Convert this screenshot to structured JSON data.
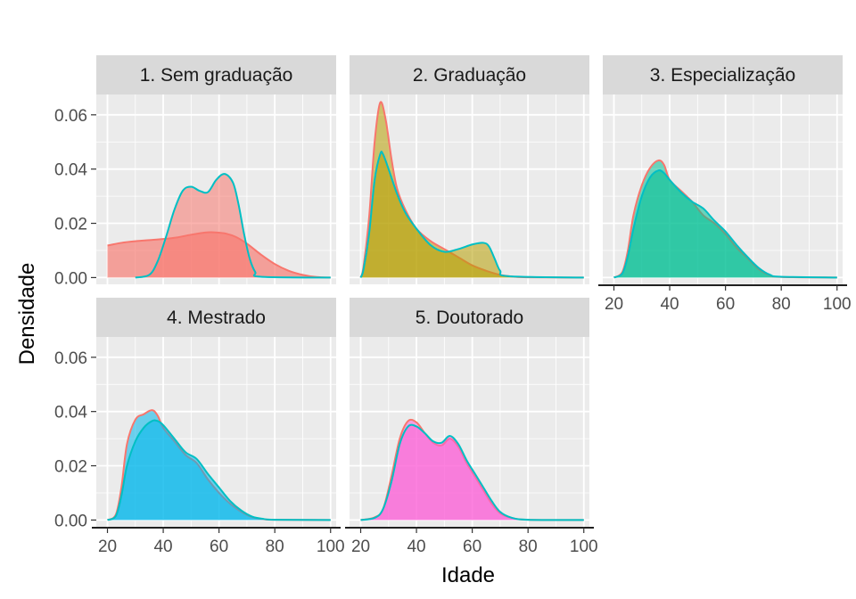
{
  "chart_data": {
    "type": "area",
    "xlabel": "Idade",
    "ylabel": "Densidade",
    "xlim": [
      16,
      102
    ],
    "ylim": [
      -0.0025,
      0.0675
    ],
    "xticks": [
      20,
      40,
      60,
      80,
      100
    ],
    "yticks": [
      0.0,
      0.02,
      0.04,
      0.06
    ],
    "ytick_labels": [
      "0.00",
      "0.02",
      "0.04",
      "0.06"
    ],
    "grid": true,
    "legend": "none",
    "panels": [
      {
        "title": "1. Sem graduação",
        "fill": "#F8766D",
        "series": [
          {
            "stroke": "#F8766D",
            "opacity": 0.65,
            "points": [
              [
                20,
                0.0118
              ],
              [
                25,
                0.0128
              ],
              [
                30,
                0.0134
              ],
              [
                35,
                0.0138
              ],
              [
                40,
                0.0142
              ],
              [
                45,
                0.0148
              ],
              [
                50,
                0.0158
              ],
              [
                55,
                0.0166
              ],
              [
                58,
                0.0167
              ],
              [
                62,
                0.0163
              ],
              [
                66,
                0.015
              ],
              [
                70,
                0.0125
              ],
              [
                75,
                0.0085
              ],
              [
                80,
                0.005
              ],
              [
                85,
                0.0025
              ],
              [
                90,
                0.001
              ],
              [
                95,
                0.0002
              ],
              [
                100,
                0.0
              ]
            ]
          },
          {
            "stroke": "#00BFC4",
            "opacity": 0.55,
            "points": [
              [
                30,
                0.0
              ],
              [
                35,
                0.001
              ],
              [
                38,
                0.006
              ],
              [
                41,
                0.015
              ],
              [
                44,
                0.025
              ],
              [
                47,
                0.032
              ],
              [
                50,
                0.0335
              ],
              [
                53,
                0.032
              ],
              [
                56,
                0.0315
              ],
              [
                59,
                0.036
              ],
              [
                62,
                0.0382
              ],
              [
                65,
                0.035
              ],
              [
                67,
                0.027
              ],
              [
                69,
                0.016
              ],
              [
                71,
                0.007
              ],
              [
                73,
                0.002
              ],
              [
                75,
                0.0003
              ],
              [
                100,
                0.0
              ]
            ]
          }
        ]
      },
      {
        "title": "2. Graduação",
        "fill": "#B79F00",
        "series": [
          {
            "stroke": "#F8766D",
            "opacity": 0.55,
            "points": [
              [
                20,
                0.0
              ],
              [
                21,
                0.004
              ],
              [
                23,
                0.022
              ],
              [
                25,
                0.05
              ],
              [
                27,
                0.0645
              ],
              [
                29,
                0.058
              ],
              [
                31,
                0.044
              ],
              [
                33,
                0.033
              ],
              [
                36,
                0.025
              ],
              [
                40,
                0.018
              ],
              [
                45,
                0.0135
              ],
              [
                50,
                0.0105
              ],
              [
                55,
                0.0075
              ],
              [
                60,
                0.0045
              ],
              [
                65,
                0.0025
              ],
              [
                70,
                0.001
              ],
              [
                75,
                0.0003
              ],
              [
                80,
                0.0001
              ],
              [
                100,
                0.0
              ]
            ]
          },
          {
            "stroke": "#00BFC4",
            "opacity": 0.55,
            "points": [
              [
                20,
                0.0
              ],
              [
                21,
                0.003
              ],
              [
                23,
                0.016
              ],
              [
                25,
                0.036
              ],
              [
                27,
                0.0455
              ],
              [
                28,
                0.0455
              ],
              [
                30,
                0.04
              ],
              [
                33,
                0.031
              ],
              [
                36,
                0.024
              ],
              [
                40,
                0.018
              ],
              [
                45,
                0.012
              ],
              [
                50,
                0.0095
              ],
              [
                55,
                0.0105
              ],
              [
                60,
                0.0122
              ],
              [
                64,
                0.0128
              ],
              [
                66,
                0.0115
              ],
              [
                68,
                0.007
              ],
              [
                70,
                0.0025
              ],
              [
                73,
                0.0005
              ],
              [
                100,
                0.0
              ]
            ]
          }
        ]
      },
      {
        "title": "3. Especialização",
        "fill": "#00C094",
        "series": [
          {
            "stroke": "#F8766D",
            "opacity": 0.55,
            "points": [
              [
                20,
                0.0
              ],
              [
                23,
                0.002
              ],
              [
                25,
                0.01
              ],
              [
                27,
                0.023
              ],
              [
                30,
                0.034
              ],
              [
                33,
                0.0405
              ],
              [
                36,
                0.0432
              ],
              [
                38,
                0.0415
              ],
              [
                40,
                0.036
              ],
              [
                44,
                0.032
              ],
              [
                48,
                0.028
              ],
              [
                52,
                0.023
              ],
              [
                56,
                0.02
              ],
              [
                60,
                0.016
              ],
              [
                64,
                0.011
              ],
              [
                68,
                0.007
              ],
              [
                72,
                0.003
              ],
              [
                76,
                0.0008
              ],
              [
                80,
                0.0002
              ],
              [
                100,
                0.0
              ]
            ]
          },
          {
            "stroke": "#00BFC4",
            "opacity": 0.55,
            "points": [
              [
                20,
                0.0
              ],
              [
                23,
                0.0015
              ],
              [
                25,
                0.008
              ],
              [
                27,
                0.018
              ],
              [
                30,
                0.03
              ],
              [
                33,
                0.037
              ],
              [
                36,
                0.0395
              ],
              [
                38,
                0.0385
              ],
              [
                40,
                0.036
              ],
              [
                44,
                0.0315
              ],
              [
                48,
                0.028
              ],
              [
                52,
                0.0255
              ],
              [
                56,
                0.021
              ],
              [
                60,
                0.017
              ],
              [
                64,
                0.012
              ],
              [
                68,
                0.0075
              ],
              [
                72,
                0.0035
              ],
              [
                76,
                0.001
              ],
              [
                80,
                0.0003
              ],
              [
                100,
                0.0
              ]
            ]
          }
        ]
      },
      {
        "title": "4. Mestrado",
        "fill": "#00B6EB",
        "series": [
          {
            "stroke": "#F8766D",
            "opacity": 0.55,
            "points": [
              [
                20,
                0.0
              ],
              [
                23,
                0.002
              ],
              [
                25,
                0.012
              ],
              [
                27,
                0.028
              ],
              [
                30,
                0.037
              ],
              [
                33,
                0.039
              ],
              [
                36,
                0.0405
              ],
              [
                38,
                0.0385
              ],
              [
                40,
                0.034
              ],
              [
                44,
                0.029
              ],
              [
                48,
                0.024
              ],
              [
                52,
                0.021
              ],
              [
                56,
                0.015
              ],
              [
                60,
                0.01
              ],
              [
                64,
                0.006
              ],
              [
                68,
                0.003
              ],
              [
                72,
                0.001
              ],
              [
                76,
                0.0003
              ],
              [
                80,
                0.0001
              ],
              [
                100,
                0.0
              ]
            ]
          },
          {
            "stroke": "#00BFC4",
            "opacity": 0.55,
            "points": [
              [
                20,
                0.0
              ],
              [
                23,
                0.0015
              ],
              [
                25,
                0.009
              ],
              [
                27,
                0.02
              ],
              [
                30,
                0.029
              ],
              [
                33,
                0.034
              ],
              [
                36,
                0.0365
              ],
              [
                38,
                0.0365
              ],
              [
                40,
                0.035
              ],
              [
                44,
                0.03
              ],
              [
                48,
                0.025
              ],
              [
                52,
                0.0225
              ],
              [
                56,
                0.017
              ],
              [
                60,
                0.012
              ],
              [
                64,
                0.007
              ],
              [
                68,
                0.0035
              ],
              [
                72,
                0.0012
              ],
              [
                76,
                0.0004
              ],
              [
                80,
                0.0001
              ],
              [
                100,
                0.0
              ]
            ]
          }
        ]
      },
      {
        "title": "5. Doutorado",
        "fill": "#FB61D7",
        "series": [
          {
            "stroke": "#F8766D",
            "opacity": 0.55,
            "points": [
              [
                20,
                0.0
              ],
              [
                25,
                0.001
              ],
              [
                28,
                0.004
              ],
              [
                31,
                0.016
              ],
              [
                34,
                0.03
              ],
              [
                37,
                0.0365
              ],
              [
                40,
                0.036
              ],
              [
                43,
                0.032
              ],
              [
                46,
                0.0285
              ],
              [
                49,
                0.0275
              ],
              [
                52,
                0.03
              ],
              [
                55,
                0.027
              ],
              [
                58,
                0.021
              ],
              [
                61,
                0.016
              ],
              [
                64,
                0.011
              ],
              [
                67,
                0.006
              ],
              [
                70,
                0.0025
              ],
              [
                74,
                0.0008
              ],
              [
                80,
                0.0001
              ],
              [
                100,
                0.0
              ]
            ]
          },
          {
            "stroke": "#00BFC4",
            "opacity": 0.55,
            "points": [
              [
                20,
                0.0
              ],
              [
                25,
                0.0008
              ],
              [
                28,
                0.004
              ],
              [
                31,
                0.014
              ],
              [
                34,
                0.028
              ],
              [
                37,
                0.0345
              ],
              [
                40,
                0.0345
              ],
              [
                43,
                0.032
              ],
              [
                46,
                0.029
              ],
              [
                49,
                0.0285
              ],
              [
                52,
                0.031
              ],
              [
                55,
                0.028
              ],
              [
                58,
                0.022
              ],
              [
                61,
                0.017
              ],
              [
                64,
                0.012
              ],
              [
                67,
                0.007
              ],
              [
                70,
                0.003
              ],
              [
                74,
                0.0009
              ],
              [
                80,
                0.0001
              ],
              [
                100,
                0.0
              ]
            ]
          }
        ]
      }
    ]
  }
}
